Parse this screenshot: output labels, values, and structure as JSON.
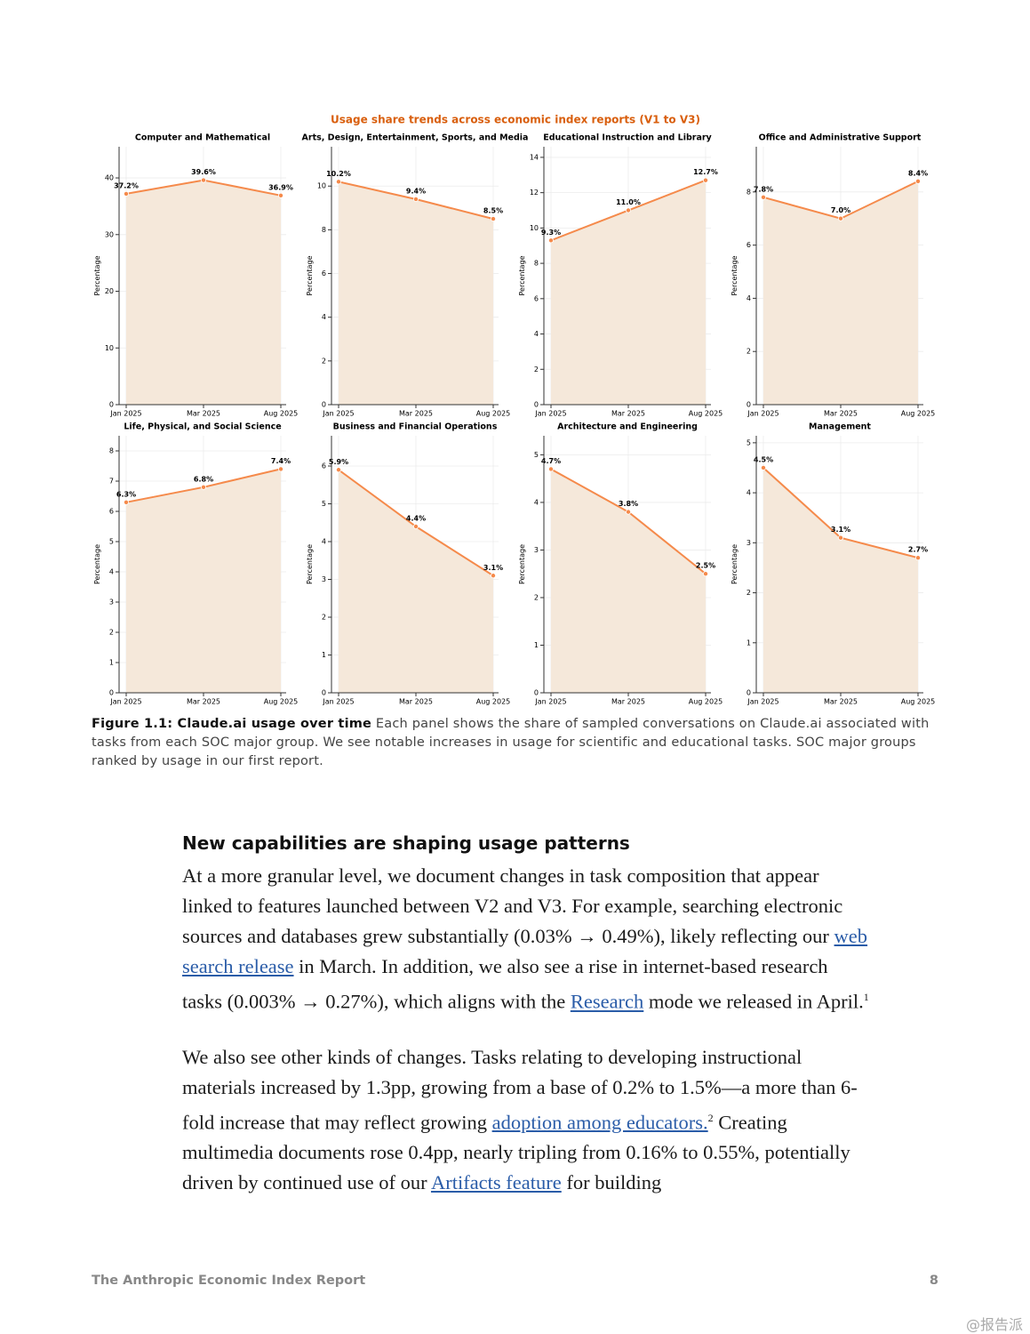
{
  "figure_title": "Usage share trends across economic index reports (V1 to V3)",
  "chart_data": [
    {
      "type": "area",
      "title": "Computer and Mathematical",
      "ylabel": "Percentage",
      "categories": [
        "Jan 2025",
        "Mar 2025",
        "Aug 2025"
      ],
      "values": [
        37.2,
        39.6,
        36.9
      ],
      "value_labels": [
        "37.2%",
        "39.6%",
        "36.9%"
      ],
      "ylim": [
        0,
        45.5
      ],
      "yticks": [
        0,
        10,
        20,
        30,
        40
      ],
      "color": "#f58a4b",
      "fill": "#f5e8da",
      "grid": true
    },
    {
      "type": "area",
      "title": "Arts, Design, Entertainment, Sports, and Media",
      "ylabel": "Percentage",
      "categories": [
        "Jan 2025",
        "Mar 2025",
        "Aug 2025"
      ],
      "values": [
        10.2,
        9.4,
        8.5
      ],
      "value_labels": [
        "10.2%",
        "9.4%",
        "8.5%"
      ],
      "ylim": [
        0,
        11.8
      ],
      "yticks": [
        0,
        2,
        4,
        6,
        8,
        10
      ],
      "color": "#f58a4b",
      "fill": "#f5e8da",
      "grid": true
    },
    {
      "type": "area",
      "title": "Educational Instruction and Library",
      "ylabel": "Percentage",
      "categories": [
        "Jan 2025",
        "Mar 2025",
        "Aug 2025"
      ],
      "values": [
        9.3,
        11.0,
        12.7
      ],
      "value_labels": [
        "9.3%",
        "11.0%",
        "12.7%"
      ],
      "ylim": [
        0,
        14.6
      ],
      "yticks": [
        0,
        2,
        4,
        6,
        8,
        10,
        12,
        14
      ],
      "color": "#f58a4b",
      "fill": "#f5e8da",
      "grid": true
    },
    {
      "type": "area",
      "title": "Office and Administrative Support",
      "ylabel": "Percentage",
      "categories": [
        "Jan 2025",
        "Mar 2025",
        "Aug 2025"
      ],
      "values": [
        7.8,
        7.0,
        8.4
      ],
      "value_labels": [
        "7.8%",
        "7.0%",
        "8.4%"
      ],
      "ylim": [
        0,
        9.7
      ],
      "yticks": [
        0,
        2,
        4,
        6,
        8
      ],
      "color": "#f58a4b",
      "fill": "#f5e8da",
      "grid": true
    },
    {
      "type": "area",
      "title": "Life, Physical, and Social Science",
      "ylabel": "Percentage",
      "categories": [
        "Jan 2025",
        "Mar 2025",
        "Aug 2025"
      ],
      "values": [
        6.3,
        6.8,
        7.4
      ],
      "value_labels": [
        "6.3%",
        "6.8%",
        "7.4%"
      ],
      "ylim": [
        0,
        8.5
      ],
      "yticks": [
        0,
        1,
        2,
        3,
        4,
        5,
        6,
        7,
        8
      ],
      "color": "#f58a4b",
      "fill": "#f5e8da",
      "grid": true
    },
    {
      "type": "area",
      "title": "Business and Financial Operations",
      "ylabel": "Percentage",
      "categories": [
        "Jan 2025",
        "Mar 2025",
        "Aug 2025"
      ],
      "values": [
        5.9,
        4.4,
        3.1
      ],
      "value_labels": [
        "5.9%",
        "4.4%",
        "3.1%"
      ],
      "ylim": [
        0,
        6.8
      ],
      "yticks": [
        0,
        1,
        2,
        3,
        4,
        5,
        6
      ],
      "color": "#f58a4b",
      "fill": "#f5e8da",
      "grid": true
    },
    {
      "type": "area",
      "title": "Architecture and Engineering",
      "ylabel": "Percentage",
      "categories": [
        "Jan 2025",
        "Mar 2025",
        "Aug 2025"
      ],
      "values": [
        4.7,
        3.8,
        2.5
      ],
      "value_labels": [
        "4.7%",
        "3.8%",
        "2.5%"
      ],
      "ylim": [
        0,
        5.4
      ],
      "yticks": [
        0,
        1,
        2,
        3,
        4,
        5
      ],
      "color": "#f58a4b",
      "fill": "#f5e8da",
      "grid": true
    },
    {
      "type": "area",
      "title": "Management",
      "ylabel": "Percentage",
      "categories": [
        "Jan 2025",
        "Mar 2025",
        "Aug 2025"
      ],
      "values": [
        4.5,
        3.1,
        2.7
      ],
      "value_labels": [
        "4.5%",
        "3.1%",
        "2.7%"
      ],
      "ylim": [
        0,
        5.14
      ],
      "yticks": [
        0,
        1,
        2,
        3,
        4,
        5
      ],
      "color": "#f58a4b",
      "fill": "#f5e8da",
      "grid": true
    }
  ],
  "caption": {
    "label": "Figure 1.1: Claude.ai usage over time",
    "text": "Each panel shows the share of sampled conversations on Claude.ai associated with tasks from each SOC major group. We see notable increases in usage for scientific and educational tasks. SOC major groups ranked by usage in our first report."
  },
  "section": {
    "heading": "New capabilities are shaping usage patterns",
    "paragraphs": [
      [
        "At a more granular level, we document changes in task composition that appear linked to features launched between V2 and V3. For example, searching electronic sources and databases grew substantially (0.03% → 0.49%), likely reflecting our ",
        "web search release",
        " in March. In addition, we also see a rise in internet-based research tasks (0.003% → 0.27%), which aligns with the ",
        "Research",
        " mode we released in April.",
        "1"
      ],
      [
        "We also see other kinds of changes. Tasks relating to developing instructional materials increased by 1.3pp, growing from a base of 0.2% to 1.5%—a more than 6-fold increase that may reflect growing ",
        "adoption among educators.",
        "2",
        " Creating multimedia documents rose 0.4pp, nearly tripling from 0.16% to 0.55%, potentially driven by continued use of our ",
        "Artifacts feature",
        " for building"
      ]
    ]
  },
  "footer": {
    "title": "The Anthropic Economic Index Report",
    "page": "8"
  },
  "watermark": "@报告派"
}
